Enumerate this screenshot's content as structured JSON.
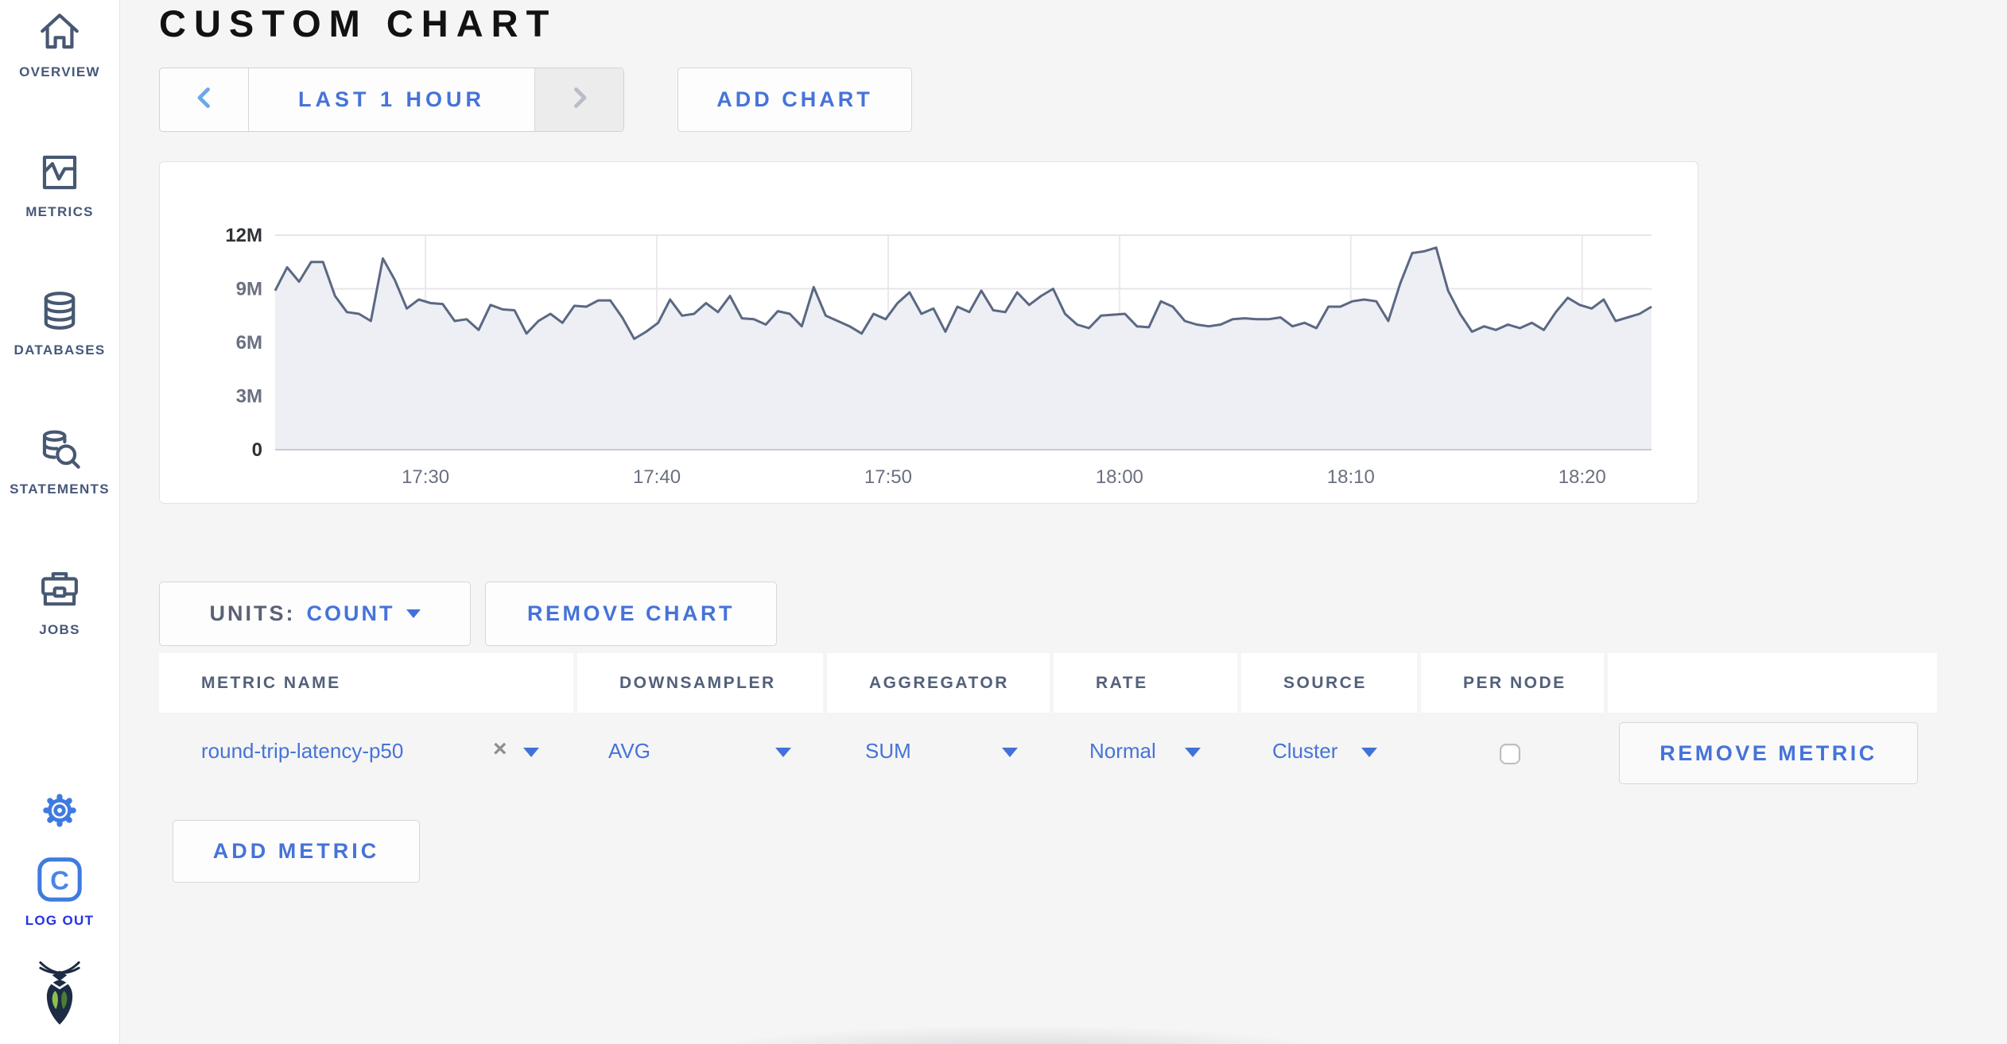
{
  "sidebar": {
    "items": [
      {
        "label": "OVERVIEW",
        "icon": "home-icon"
      },
      {
        "label": "METRICS",
        "icon": "metrics-icon"
      },
      {
        "label": "DATABASES",
        "icon": "database-icon"
      },
      {
        "label": "STATEMENTS",
        "icon": "statements-icon"
      },
      {
        "label": "JOBS",
        "icon": "briefcase-icon"
      }
    ],
    "settings_icon": "gear-icon",
    "logout": {
      "label": "LOG OUT",
      "avatar_letter": "C",
      "icon": "user-avatar"
    },
    "logo_icon": "cockroach-logo"
  },
  "header": {
    "title": "CUSTOM CHART"
  },
  "toolbar": {
    "time_range": {
      "prev_icon": "chevron-left",
      "label": "LAST 1 HOUR",
      "next_icon": "chevron-right"
    },
    "add_chart_label": "ADD CHART"
  },
  "chart_controls": {
    "units_label": "UNITS:",
    "units_value": "COUNT",
    "remove_chart_label": "REMOVE CHART",
    "add_metric_label": "ADD METRIC"
  },
  "metrics_table": {
    "columns": [
      "METRIC NAME",
      "DOWNSAMPLER",
      "AGGREGATOR",
      "RATE",
      "SOURCE",
      "PER NODE",
      ""
    ],
    "rows": [
      {
        "metric_name": "round-trip-latency-p50",
        "clear_glyph": "×",
        "downsampler": "AVG",
        "aggregator": "SUM",
        "rate": "Normal",
        "source": "Cluster",
        "per_node_checked": false,
        "remove_label": "REMOVE METRIC"
      }
    ]
  },
  "colors": {
    "accent_blue": "#4573d9",
    "light_blue_chevron": "#6aa9e9",
    "disabled_chevron": "#b9bdc5",
    "slate_icon": "#475872",
    "logout_blue": "#2331e8",
    "chart_line": "#5b6883",
    "chart_fill": "#edeff4"
  },
  "chart_data": {
    "type": "area",
    "title": "",
    "xlabel": "",
    "ylabel": "",
    "legend": "none",
    "grid": true,
    "y_max": 12,
    "value_unit": "millions (count)",
    "x_start_minutes": 23.5,
    "x_end_minutes": 83,
    "x_minutes_base": "17:00",
    "x_ticks": [
      {
        "minute": 30,
        "label": "17:30"
      },
      {
        "minute": 40,
        "label": "17:40"
      },
      {
        "minute": 50,
        "label": "17:50"
      },
      {
        "minute": 60,
        "label": "18:00"
      },
      {
        "minute": 70,
        "label": "18:10"
      },
      {
        "minute": 80,
        "label": "18:20"
      }
    ],
    "y_ticks": [
      {
        "value": 0,
        "label": "0",
        "emphasis": true
      },
      {
        "value": 3,
        "label": "3M",
        "emphasis": false
      },
      {
        "value": 6,
        "label": "6M",
        "emphasis": false
      },
      {
        "value": 9,
        "label": "9M",
        "emphasis": false
      },
      {
        "value": 12,
        "label": "12M",
        "emphasis": true
      }
    ],
    "series": [
      {
        "name": "round-trip-latency-p50",
        "values": [
          8.9,
          10.2,
          9.4,
          10.5,
          10.5,
          8.6,
          7.7,
          7.6,
          7.2,
          10.7,
          9.5,
          7.9,
          8.4,
          8.2,
          8.15,
          7.2,
          7.3,
          6.7,
          8.1,
          7.85,
          7.8,
          6.5,
          7.2,
          7.6,
          7.1,
          8.05,
          8.0,
          8.35,
          8.35,
          7.4,
          6.2,
          6.6,
          7.1,
          8.4,
          7.5,
          7.6,
          8.2,
          7.7,
          8.6,
          7.35,
          7.3,
          7.0,
          7.75,
          7.6,
          6.9,
          9.1,
          7.5,
          7.2,
          6.9,
          6.5,
          7.6,
          7.3,
          8.2,
          8.8,
          7.6,
          7.9,
          6.6,
          8.0,
          7.7,
          8.9,
          7.8,
          7.7,
          8.8,
          8.1,
          8.6,
          9.0,
          7.6,
          7.0,
          6.8,
          7.5,
          7.55,
          7.6,
          6.9,
          6.85,
          8.3,
          8.0,
          7.2,
          7.0,
          6.9,
          7.0,
          7.3,
          7.35,
          7.3,
          7.3,
          7.4,
          6.9,
          7.1,
          6.8,
          8.0,
          8.0,
          8.3,
          8.4,
          8.3,
          7.2,
          9.3,
          11.0,
          11.1,
          11.3,
          8.9,
          7.6,
          6.6,
          6.9,
          6.7,
          7.0,
          6.8,
          7.1,
          6.7,
          7.7,
          8.5,
          8.1,
          7.9,
          8.4,
          7.2,
          7.4,
          7.6,
          8.0
        ]
      }
    ]
  }
}
